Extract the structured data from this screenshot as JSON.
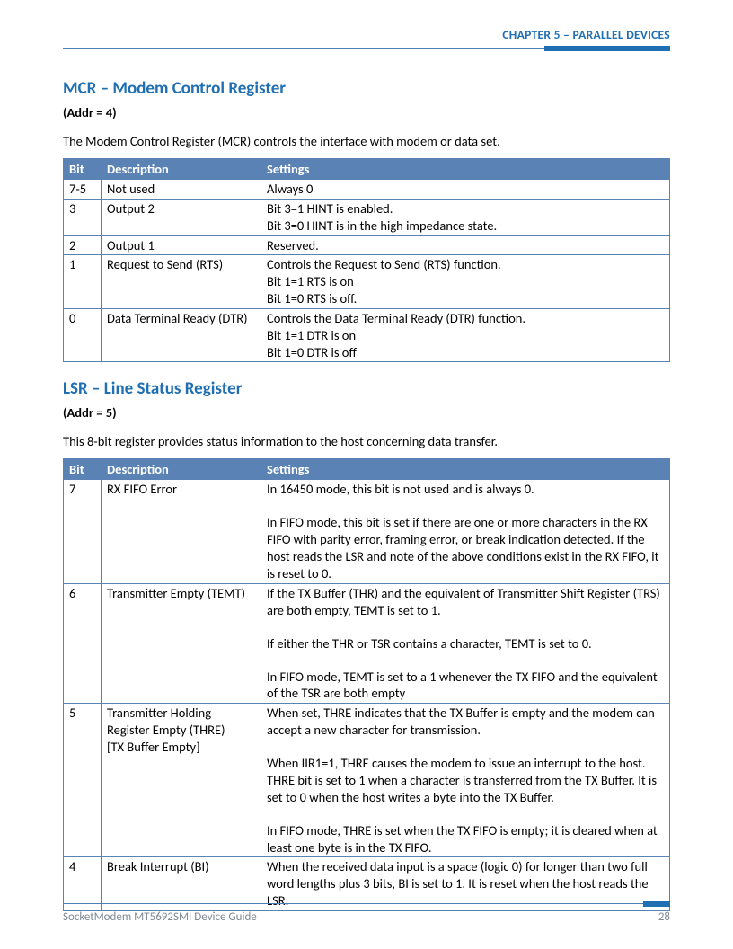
{
  "header": {
    "chapter": "CHAPTER 5 – PARALLEL DEVICES"
  },
  "colors": {
    "accent": "#1f6fb2",
    "table_header_bg": "#5a82b4",
    "table_border": "#5a82b4",
    "footer_text": "#7f8a94"
  },
  "section_mcr": {
    "title": "MCR – Modem Control Register",
    "addr": "(Addr = 4)",
    "intro": "The Modem Control Register (MCR) controls the interface with modem or data set.",
    "columns": {
      "bit": "Bit",
      "desc": "Description",
      "settings": "Settings"
    },
    "rows": [
      {
        "bit": "7-5",
        "desc": "Not used",
        "settings": [
          "Always 0"
        ]
      },
      {
        "bit": "3",
        "desc": "Output 2",
        "settings": [
          "Bit 3=1 HINT is enabled.",
          "Bit 3=0 HINT is in the high impedance state."
        ]
      },
      {
        "bit": "2",
        "desc": "Output 1",
        "settings": [
          "Reserved."
        ]
      },
      {
        "bit": "1",
        "desc": "Request to Send (RTS)",
        "settings": [
          "Controls the Request to Send (RTS) function.",
          "Bit 1=1 RTS is on",
          "Bit 1=0 RTS is off."
        ]
      },
      {
        "bit": "0",
        "desc": "Data Terminal Ready (DTR)",
        "settings": [
          "Controls the Data Terminal Ready (DTR) function.",
          "Bit 1=1 DTR is on",
          "Bit 1=0 DTR is off"
        ]
      }
    ]
  },
  "section_lsr": {
    "title": "LSR – Line Status Register",
    "addr": "(Addr = 5)",
    "intro": "This 8-bit register provides status information to the host concerning data transfer.",
    "columns": {
      "bit": "Bit",
      "desc": "Description",
      "settings": "Settings"
    },
    "rows": [
      {
        "bit": "7",
        "desc": "RX FIFO Error",
        "settings": [
          "In 16450 mode, this bit is not used and is always 0.",
          "",
          "In FIFO mode, this bit is set if there are one or more characters in the RX FIFO with parity error, framing error, or break indication detected. If the host reads the LSR and note of the above conditions exist in the RX FIFO, it is reset to 0."
        ]
      },
      {
        "bit": "6",
        "desc": "Transmitter Empty (TEMT)",
        "settings": [
          "If the TX Buffer (THR) and the equivalent of Transmitter Shift Register (TRS) are both empty, TEMT is set to 1.",
          "",
          "If either the THR or TSR contains a character, TEMT is set to 0.",
          "",
          "In FIFO mode, TEMT is set to a 1 whenever the TX FIFO and the equivalent of the TSR are both empty"
        ]
      },
      {
        "bit": "5",
        "desc_lines": [
          "Transmitter Holding",
          "Register Empty (THRE)",
          "[TX Buffer Empty]"
        ],
        "settings": [
          "When set, THRE indicates that the TX Buffer is empty and the modem can accept a new character for transmission.",
          "",
          "When IIR1=1, THRE causes the modem to issue an interrupt to the host. THRE bit is set to 1 when a character is transferred from the TX Buffer. It is set to 0 when the host writes a byte into the TX Buffer.",
          "",
          "In FIFO mode, THRE is set when the TX FIFO is empty; it is cleared when at least one byte is in the TX FIFO."
        ]
      },
      {
        "bit": "4",
        "desc": "Break Interrupt (BI)",
        "settings": [
          "When the received data input is a space (logic 0) for longer than two full word lengths plus 3 bits, BI is set to 1. It is reset when the host reads the LSR."
        ]
      }
    ]
  },
  "footer": {
    "left": "SocketModem MT5692SMI Device Guide",
    "page": "28"
  }
}
